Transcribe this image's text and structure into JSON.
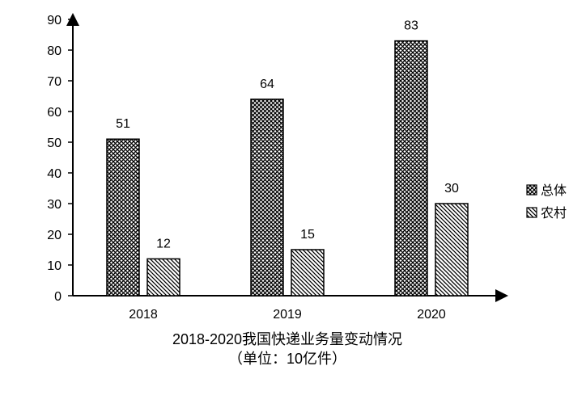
{
  "chart_data": {
    "type": "bar",
    "title": "2018-2020我国快递业务量变动情况",
    "subtitle": "（单位：10亿件）",
    "xlabel": "",
    "ylabel": "",
    "categories": [
      "2018",
      "2019",
      "2020"
    ],
    "series": [
      {
        "name": "总体",
        "values": [
          51,
          64,
          83
        ],
        "pattern": "crosshatch"
      },
      {
        "name": "农村",
        "values": [
          12,
          15,
          30
        ],
        "pattern": "diagonal"
      }
    ],
    "ylim": [
      0,
      90
    ],
    "yticks": [
      0,
      10,
      20,
      30,
      40,
      50,
      60,
      70,
      80,
      90
    ],
    "grid": false,
    "legend_position": "right"
  }
}
